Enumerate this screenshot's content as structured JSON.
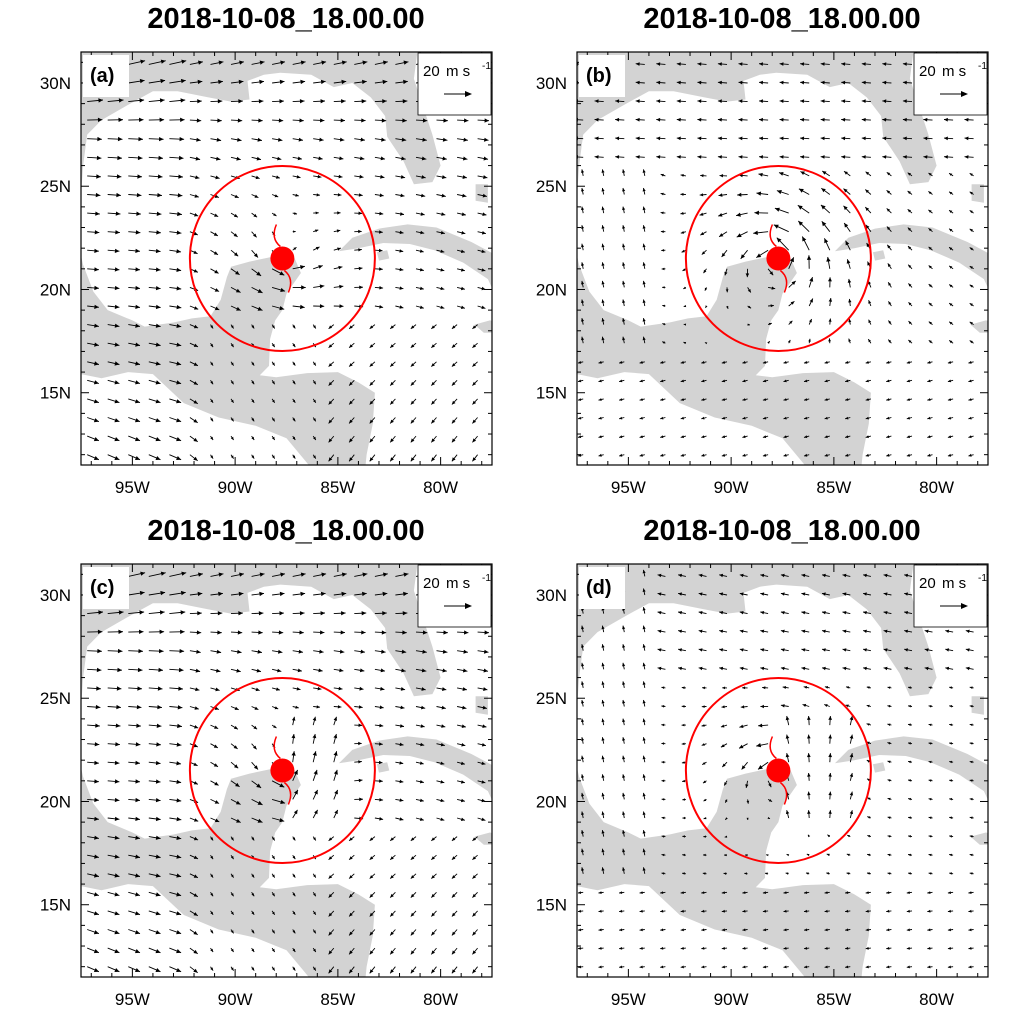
{
  "figure": {
    "panels": [
      {
        "id": "a",
        "title": "2018-10-08_18.00.00",
        "label": "(a)",
        "key": {
          "value": "20",
          "unit": "m s",
          "exp": "-1"
        }
      },
      {
        "id": "b",
        "title": "2018-10-08_18.00.00",
        "label": "(b)",
        "key": {
          "value": "20",
          "unit": "m s",
          "exp": "-1"
        }
      },
      {
        "id": "c",
        "title": "2018-10-08_18.00.00",
        "label": "(c)",
        "key": {
          "value": "20",
          "unit": "m s",
          "exp": "-1"
        }
      },
      {
        "id": "d",
        "title": "2018-10-08_18.00.00",
        "label": "(d)",
        "key": {
          "value": "20",
          "unit": "m s",
          "exp": "-1"
        }
      }
    ],
    "x_ticks": [
      "95W",
      "90W",
      "85W",
      "80W"
    ],
    "x_tick_values": [
      -95,
      -90,
      -85,
      -80
    ],
    "y_ticks": [
      "30N",
      "25N",
      "20N",
      "15N"
    ],
    "y_tick_values": [
      30,
      25,
      20,
      15
    ],
    "extent": {
      "lon": [
        -97.5,
        -77.5
      ],
      "lat": [
        11.5,
        31.5
      ]
    },
    "storm": {
      "lon": -87.7,
      "lat": 21.5,
      "circle_radius_deg": 4.5
    },
    "colors": {
      "land": "#d3d3d3",
      "ocean": "#ffffff",
      "circle": "#ff0000",
      "storm": "#ff0000",
      "vector": "#000000"
    }
  }
}
